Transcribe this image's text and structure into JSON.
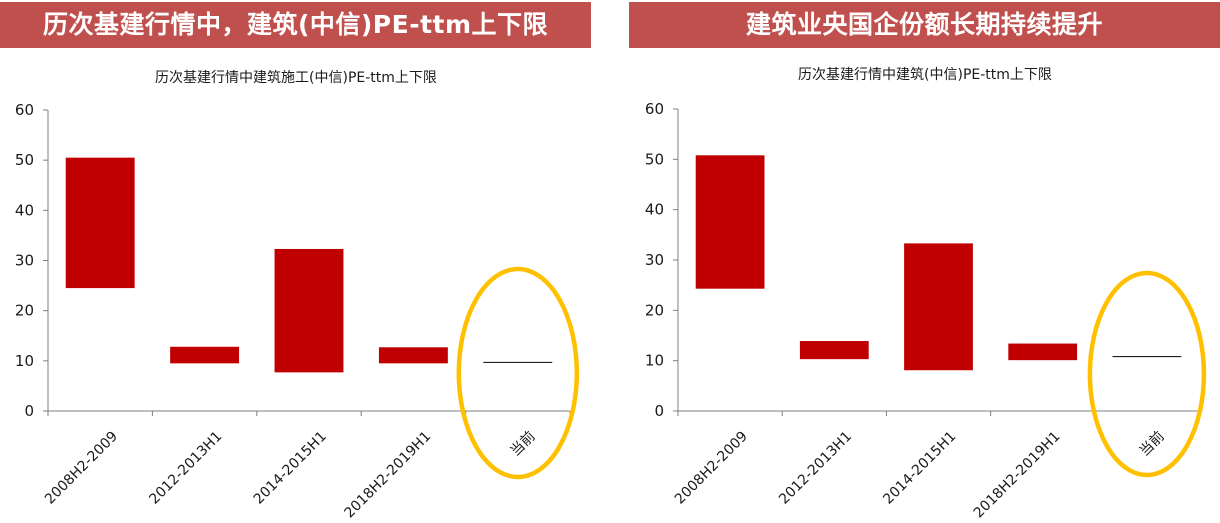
{
  "colors": {
    "banner_bg": "#c0504d",
    "bar": "#c00000",
    "highlight_circle": "#ffc000",
    "axis": "#7f7f7f",
    "current_line": "#000000"
  },
  "panels": [
    {
      "banner": "历次基建行情中，建筑(中信)PE-ttm上下限"
    },
    {
      "banner": "建筑业央国企份额长期持续提升"
    }
  ],
  "chart_data": [
    {
      "type": "bar",
      "subtype": "floating-range",
      "title": "历次基建行情中建筑施工(中信)PE-ttm上下限",
      "categories": [
        "2008H2-2009",
        "2012-2013H1",
        "2014-2015H1",
        "2018H2-2019H1",
        "当前"
      ],
      "ranges": [
        {
          "low": 24.5,
          "high": 50.5
        },
        {
          "low": 9.5,
          "high": 12.8
        },
        {
          "low": 7.7,
          "high": 32.3
        },
        {
          "low": 9.5,
          "high": 12.7
        }
      ],
      "current_value": 9.7,
      "highlighted_category": "当前",
      "ylim": [
        0,
        60
      ],
      "yticks": [
        "0",
        "10",
        "20",
        "30",
        "40",
        "50",
        "60"
      ],
      "grid": false,
      "legend": "none"
    },
    {
      "type": "bar",
      "subtype": "floating-range",
      "title": "历次基建行情中建筑(中信)PE-ttm上下限",
      "categories": [
        "2008H2-2009",
        "2012-2013H1",
        "2014-2015H1",
        "2018H2-2019H1",
        "当前"
      ],
      "ranges": [
        {
          "low": 24.3,
          "high": 50.8
        },
        {
          "low": 10.3,
          "high": 13.9
        },
        {
          "low": 8.1,
          "high": 33.3
        },
        {
          "low": 10.1,
          "high": 13.4
        }
      ],
      "current_value": 10.8,
      "highlighted_category": "当前",
      "ylim": [
        0,
        60
      ],
      "yticks": [
        "0",
        "10",
        "20",
        "30",
        "40",
        "50",
        "60"
      ],
      "grid": false,
      "legend": "none"
    }
  ]
}
